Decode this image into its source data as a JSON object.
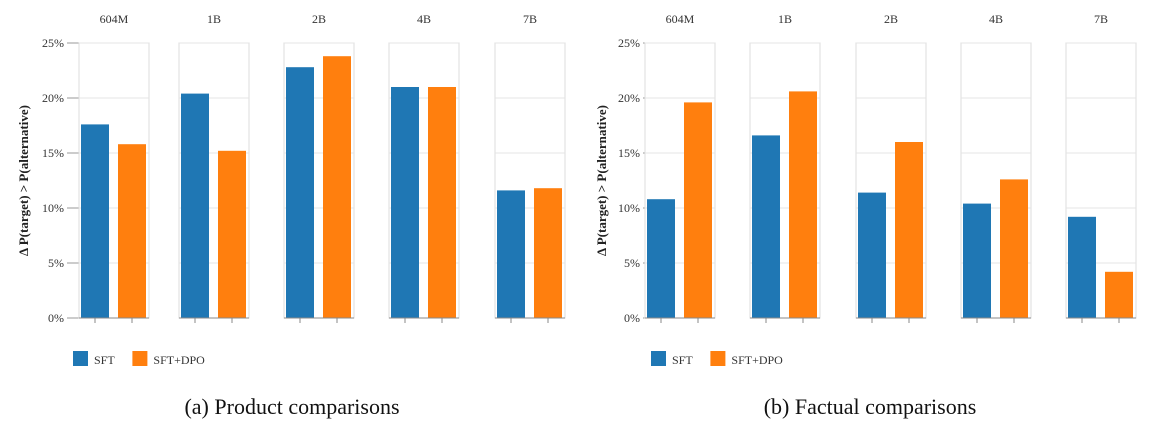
{
  "chart_data": [
    {
      "type": "bar",
      "caption": "(a) Product comparisons",
      "ylabel": "Δ P(target) > P(alternative)",
      "ylim": [
        0,
        25
      ],
      "yticks": [
        "0%",
        "5%",
        "10%",
        "15%",
        "20%",
        "25%"
      ],
      "grid": true,
      "legend_placement": "bottom-left",
      "panels": [
        "604M",
        "1B",
        "2B",
        "4B",
        "7B"
      ],
      "series": [
        {
          "name": "SFT",
          "color": "#1f77b4",
          "values": [
            17.6,
            20.4,
            22.8,
            21.0,
            11.6
          ]
        },
        {
          "name": "SFT+DPO",
          "color": "#ff7f0e",
          "values": [
            15.8,
            15.2,
            23.8,
            21.0,
            11.8
          ]
        }
      ]
    },
    {
      "type": "bar",
      "caption": "(b) Factual comparisons",
      "ylabel": "Δ P(target) > P(alternative)",
      "ylim": [
        0,
        25
      ],
      "yticks": [
        "0%",
        "5%",
        "10%",
        "15%",
        "20%",
        "25%"
      ],
      "grid": true,
      "legend_placement": "bottom-left",
      "panels": [
        "604M",
        "1B",
        "2B",
        "4B",
        "7B"
      ],
      "series": [
        {
          "name": "SFT",
          "color": "#1f77b4",
          "values": [
            10.8,
            16.6,
            11.4,
            10.4,
            9.2
          ]
        },
        {
          "name": "SFT+DPO",
          "color": "#ff7f0e",
          "values": [
            19.6,
            20.6,
            16.0,
            12.6,
            4.2
          ]
        }
      ]
    }
  ]
}
